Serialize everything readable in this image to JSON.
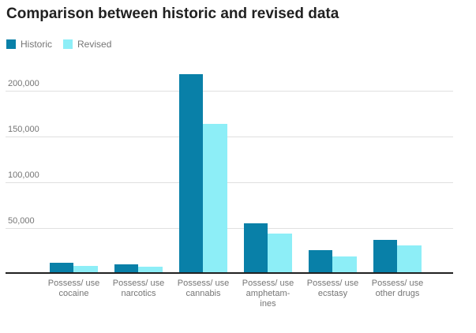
{
  "chart_data": {
    "type": "bar",
    "title": "Comparison between historic and revised data",
    "categories": [
      "Possess/ use cocaine",
      "Possess/ use narcotics",
      "Possess/ use cannabis",
      "Possess/ use amphetamines",
      "Possess/ use ecstasy",
      "Possess/ use other drugs"
    ],
    "category_label_lines": [
      [
        "Possess/ use",
        "cocaine"
      ],
      [
        "Possess/ use",
        "narcotics"
      ],
      [
        "Possess/ use",
        "cannabis"
      ],
      [
        "Possess/ use",
        "amphetam-",
        "ines"
      ],
      [
        "Possess/ use",
        "ecstasy"
      ],
      [
        "Possess/ use",
        "other drugs"
      ]
    ],
    "series": [
      {
        "name": "Historic",
        "color": "#0980a8",
        "values": [
          12000,
          10000,
          218000,
          55000,
          26000,
          37000
        ]
      },
      {
        "name": "Revised",
        "color": "#8deef7",
        "values": [
          9000,
          8000,
          164000,
          44000,
          19000,
          31000
        ]
      }
    ],
    "xlabel": "",
    "ylabel": "",
    "ylim": [
      0,
      226000
    ],
    "yticks": [
      50000,
      100000,
      150000,
      200000
    ],
    "ytick_labels": [
      "50,000",
      "100,000",
      "150,000",
      "200,000"
    ],
    "grid": "horizontal",
    "legend_position": "top-left",
    "colors": {
      "gridline": "#e0e0e0",
      "axis_line": "#212121",
      "title_text": "#212121",
      "tick_text": "#757575"
    }
  }
}
